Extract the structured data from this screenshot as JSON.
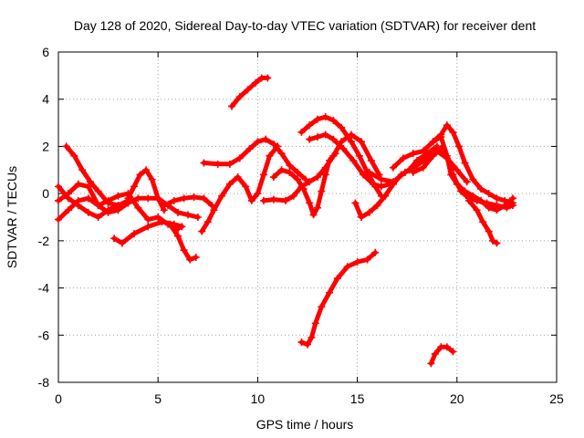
{
  "chart_data": {
    "type": "scatter",
    "title": "Day 128 of 2020, Sidereal Day-to-day VTEC variation (SDTVAR) for receiver dent",
    "xlabel": "GPS time / hours",
    "ylabel": "SDTVAR / TECUs",
    "xlim": [
      0,
      25
    ],
    "ylim": [
      -8,
      6
    ],
    "xticks": [
      0,
      5,
      10,
      15,
      20,
      25
    ],
    "yticks": [
      -8,
      -6,
      -4,
      -2,
      0,
      2,
      4,
      6
    ],
    "grid": true,
    "marker": "+",
    "color": "#ff0000",
    "series": [
      {
        "name": "arc-1",
        "points": [
          [
            0,
            -1.1
          ],
          [
            0.5,
            -0.7
          ],
          [
            1,
            -0.3
          ],
          [
            1.5,
            -0.2
          ],
          [
            2,
            -0.5
          ],
          [
            2.5,
            -0.3
          ],
          [
            3,
            -0.1
          ],
          [
            3.5,
            0
          ],
          [
            4,
            -0.6
          ],
          [
            4.5,
            -1.1
          ],
          [
            5,
            -1.0
          ],
          [
            5.5,
            -1.3
          ],
          [
            6,
            -1.5
          ]
        ]
      },
      {
        "name": "arc-2",
        "points": [
          [
            0,
            -0.3
          ],
          [
            0.5,
            0
          ],
          [
            1,
            0.4
          ],
          [
            1.5,
            0.3
          ],
          [
            2,
            -0.5
          ],
          [
            2.5,
            -0.8
          ],
          [
            3,
            -0.7
          ],
          [
            3.5,
            -0.4
          ],
          [
            4,
            -0.2
          ],
          [
            4.5,
            -0.2
          ],
          [
            5,
            -0.2
          ],
          [
            5.5,
            -0.5
          ],
          [
            6,
            -0.8
          ],
          [
            6.5,
            -0.9
          ],
          [
            7,
            -1.0
          ]
        ]
      },
      {
        "name": "arc-3",
        "points": [
          [
            0,
            0.3
          ],
          [
            0.5,
            -0.2
          ],
          [
            1,
            -0.5
          ],
          [
            1.5,
            -0.8
          ],
          [
            2,
            -1.0
          ],
          [
            2.5,
            -0.7
          ],
          [
            3,
            -0.5
          ],
          [
            3.5,
            -0.3
          ]
        ]
      },
      {
        "name": "arc-4",
        "points": [
          [
            0.4,
            2.0
          ],
          [
            0.8,
            1.6
          ],
          [
            1.2,
            1.0
          ],
          [
            1.6,
            0.5
          ],
          [
            2,
            0.1
          ],
          [
            2.5,
            -0.4
          ],
          [
            3,
            -0.5
          ],
          [
            3.5,
            -0.4
          ]
        ]
      },
      {
        "name": "arc-5",
        "points": [
          [
            3.5,
            -0.2
          ],
          [
            3.8,
            0.3
          ],
          [
            4.1,
            0.8
          ],
          [
            4.4,
            1.0
          ],
          [
            4.7,
            0.6
          ],
          [
            5,
            -0.2
          ],
          [
            5.3,
            -0.7
          ]
        ]
      },
      {
        "name": "arc-6",
        "points": [
          [
            2.8,
            -1.9
          ],
          [
            3.2,
            -2.1
          ],
          [
            3.8,
            -1.7
          ],
          [
            4.5,
            -1.4
          ],
          [
            5.2,
            -1.2
          ],
          [
            5.8,
            -1.3
          ],
          [
            6.2,
            -1.4
          ]
        ]
      },
      {
        "name": "arc-7",
        "points": [
          [
            5.6,
            -1.3
          ],
          [
            6,
            -1.8
          ],
          [
            6.3,
            -2.4
          ],
          [
            6.6,
            -2.8
          ],
          [
            6.9,
            -2.7
          ]
        ]
      },
      {
        "name": "arc-8",
        "points": [
          [
            5.3,
            -0.5
          ],
          [
            5.8,
            -0.3
          ],
          [
            6.3,
            -0.2
          ],
          [
            6.8,
            -0.15
          ],
          [
            7.3,
            -0.2
          ],
          [
            7.7,
            -0.5
          ]
        ]
      },
      {
        "name": "arc-9",
        "points": [
          [
            7.2,
            -1.6
          ],
          [
            7.5,
            -1.2
          ],
          [
            7.8,
            -0.7
          ],
          [
            8.2,
            -0.1
          ],
          [
            8.6,
            0.4
          ],
          [
            9,
            0.7
          ],
          [
            9.4,
            0.3
          ],
          [
            9.7,
            -0.3
          ],
          [
            10,
            0
          ],
          [
            10.3,
            0.8
          ],
          [
            10.6,
            1.6
          ],
          [
            11,
            2.0
          ]
        ]
      },
      {
        "name": "arc-10",
        "points": [
          [
            7.3,
            1.3
          ],
          [
            8,
            1.25
          ],
          [
            8.6,
            1.25
          ],
          [
            9.1,
            1.5
          ],
          [
            9.6,
            1.9
          ],
          [
            10,
            2.2
          ],
          [
            10.4,
            2.3
          ],
          [
            10.8,
            2.1
          ],
          [
            11.2,
            1.7
          ],
          [
            11.6,
            1.2
          ],
          [
            12,
            0.9
          ],
          [
            12.4,
            0.6
          ]
        ]
      },
      {
        "name": "arc-11",
        "points": [
          [
            10.8,
            0.7
          ],
          [
            11.2,
            1.0
          ],
          [
            11.6,
            0.9
          ],
          [
            12,
            0.6
          ],
          [
            12.3,
            0.2
          ],
          [
            12.6,
            -0.4
          ],
          [
            12.8,
            -0.9
          ],
          [
            13,
            -0.6
          ],
          [
            13.2,
            0.1
          ],
          [
            13.4,
            0.8
          ],
          [
            13.6,
            1.4
          ],
          [
            13.9,
            1.7
          ]
        ]
      },
      {
        "name": "arc-12",
        "points": [
          [
            10.3,
            -0.3
          ],
          [
            10.8,
            -0.25
          ],
          [
            11.4,
            -0.3
          ],
          [
            11.8,
            -0.1
          ],
          [
            12.2,
            0.3
          ],
          [
            12.6,
            0.5
          ],
          [
            13,
            0.7
          ],
          [
            13.4,
            1.1
          ],
          [
            13.8,
            1.6
          ],
          [
            14.2,
            2.2
          ],
          [
            14.7,
            2.5
          ],
          [
            15.2,
            2.2
          ],
          [
            15.7,
            1.4
          ],
          [
            16.1,
            0.8
          ]
        ]
      },
      {
        "name": "arc-13",
        "points": [
          [
            8.7,
            3.7
          ],
          [
            9.1,
            4.1
          ],
          [
            9.5,
            4.4
          ],
          [
            9.9,
            4.7
          ],
          [
            10.2,
            4.9
          ],
          [
            10.5,
            4.9
          ]
        ]
      },
      {
        "name": "arc-14",
        "points": [
          [
            12.2,
            2.6
          ],
          [
            12.6,
            2.9
          ],
          [
            13,
            3.15
          ],
          [
            13.4,
            3.25
          ],
          [
            13.8,
            3.1
          ],
          [
            14.2,
            2.8
          ],
          [
            14.7,
            2.2
          ],
          [
            15.1,
            1.6
          ],
          [
            15.5,
            0.9
          ],
          [
            15.9,
            0.3
          ],
          [
            16.2,
            -0.1
          ]
        ]
      },
      {
        "name": "arc-15",
        "points": [
          [
            12.6,
            2.3
          ],
          [
            13,
            2.4
          ],
          [
            13.4,
            2.5
          ],
          [
            13.8,
            2.3
          ],
          [
            14.3,
            1.9
          ],
          [
            14.8,
            1.4
          ],
          [
            15.3,
            0.8
          ],
          [
            15.8,
            0.4
          ],
          [
            16.2,
            0.3
          ],
          [
            16.6,
            0.4
          ]
        ]
      },
      {
        "name": "arc-16",
        "points": [
          [
            14.9,
            -0.4
          ],
          [
            15.2,
            -1.0
          ],
          [
            15.6,
            -0.8
          ],
          [
            16,
            -0.5
          ],
          [
            16.4,
            -0.1
          ],
          [
            16.8,
            0.4
          ],
          [
            17.2,
            0.8
          ],
          [
            17.6,
            1.0
          ],
          [
            18,
            1.4
          ],
          [
            18.5,
            1.7
          ],
          [
            19,
            2.0
          ]
        ]
      },
      {
        "name": "arc-17",
        "points": [
          [
            15.6,
            0.9
          ],
          [
            16.2,
            0.6
          ],
          [
            16.8,
            0.5
          ],
          [
            17.4,
            0.9
          ],
          [
            18,
            1.2
          ],
          [
            18.5,
            1.5
          ],
          [
            19,
            1.8
          ],
          [
            19.5,
            1.5
          ],
          [
            20,
            1.0
          ],
          [
            20.5,
            0.5
          ]
        ]
      },
      {
        "name": "arc-18",
        "points": [
          [
            16.8,
            1.1
          ],
          [
            17.3,
            1.5
          ],
          [
            17.8,
            1.7
          ],
          [
            18.3,
            1.8
          ],
          [
            18.8,
            2.2
          ],
          [
            19.2,
            2.5
          ],
          [
            19.5,
            2.9
          ],
          [
            19.8,
            2.6
          ],
          [
            20.1,
            2.0
          ],
          [
            20.4,
            1.3
          ],
          [
            20.8,
            0.6
          ],
          [
            21.2,
            0.2
          ],
          [
            21.6,
            0
          ],
          [
            22,
            -0.2
          ],
          [
            22.4,
            -0.3
          ],
          [
            22.8,
            -0.4
          ]
        ]
      },
      {
        "name": "arc-19",
        "points": [
          [
            17.8,
            0.9
          ],
          [
            18.3,
            1.1
          ],
          [
            18.8,
            1.6
          ],
          [
            19.2,
            1.9
          ],
          [
            19.5,
            1.5
          ],
          [
            19.8,
            0.8
          ],
          [
            20.2,
            0.1
          ],
          [
            20.6,
            -0.2
          ],
          [
            21,
            -0.3
          ],
          [
            21.5,
            -0.4
          ],
          [
            22,
            -0.5
          ],
          [
            22.5,
            -0.6
          ],
          [
            22.8,
            -0.5
          ]
        ]
      },
      {
        "name": "arc-20",
        "points": [
          [
            18.8,
            2.2
          ],
          [
            19.2,
            2.4
          ],
          [
            19.5,
            1.6
          ],
          [
            19.7,
            0.8
          ],
          [
            20,
            0.4
          ],
          [
            20.4,
            0.1
          ],
          [
            20.8,
            -0.1
          ],
          [
            21.2,
            -0.3
          ],
          [
            21.6,
            -0.6
          ],
          [
            22,
            -0.7
          ],
          [
            22.4,
            -0.5
          ],
          [
            22.8,
            -0.2
          ]
        ]
      },
      {
        "name": "arc-21",
        "points": [
          [
            20.6,
            -0.3
          ],
          [
            21,
            -0.7
          ],
          [
            21.3,
            -1.2
          ],
          [
            21.6,
            -1.6
          ],
          [
            21.8,
            -2.0
          ],
          [
            22,
            -2.1
          ]
        ]
      },
      {
        "name": "arc-22",
        "points": [
          [
            12.2,
            -6.3
          ],
          [
            12.5,
            -6.4
          ],
          [
            12.7,
            -6.1
          ],
          [
            12.9,
            -5.5
          ],
          [
            13.2,
            -4.8
          ],
          [
            13.6,
            -4.2
          ],
          [
            14,
            -3.6
          ],
          [
            14.5,
            -3.1
          ],
          [
            15,
            -2.9
          ],
          [
            15.5,
            -2.8
          ],
          [
            15.9,
            -2.5
          ]
        ]
      },
      {
        "name": "arc-23",
        "points": [
          [
            18.7,
            -7.2
          ],
          [
            18.9,
            -6.8
          ],
          [
            19.2,
            -6.5
          ],
          [
            19.5,
            -6.5
          ],
          [
            19.8,
            -6.7
          ]
        ]
      }
    ]
  }
}
